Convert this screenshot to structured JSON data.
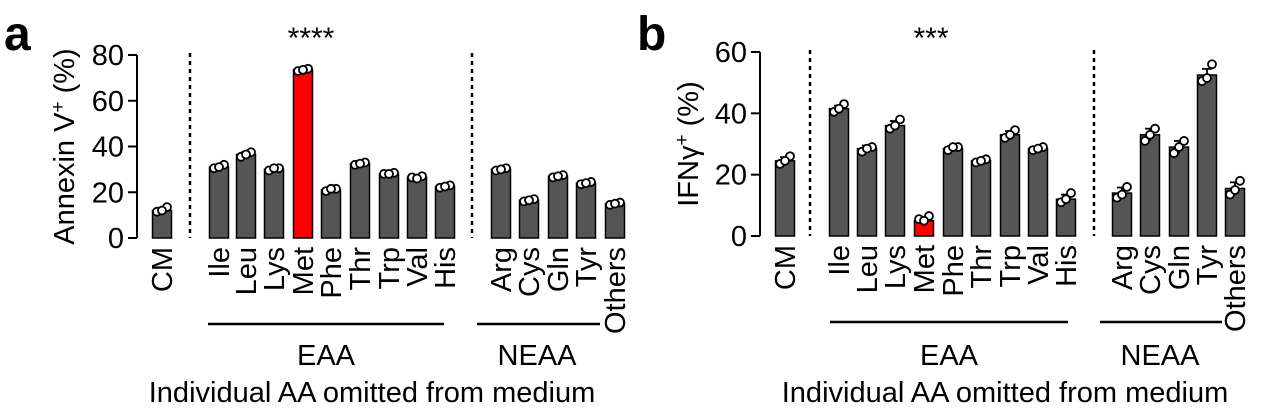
{
  "chart_data": [
    {
      "type": "bar",
      "panel_label": "a",
      "ylabel": "Annexin V",
      "ylabel_sup": "+",
      "ylabel_unit": " (%)",
      "xlabel": "Individual AA omitted from medium",
      "ylim": [
        0,
        80
      ],
      "yticks": [
        "0",
        "20",
        "40",
        "60",
        "80"
      ],
      "categories": [
        "CM",
        "Ile",
        "Leu",
        "Lys",
        "Met",
        "Phe",
        "Thr",
        "Trp",
        "Val",
        "His",
        "Arg",
        "Cys",
        "Gln",
        "Tyr",
        "Others"
      ],
      "values": [
        12,
        31,
        36.5,
        30,
        73.5,
        21,
        32.5,
        28,
        26.5,
        22.5,
        30,
        16.5,
        27,
        24,
        15
      ],
      "errors": [
        1,
        1,
        1,
        0.8,
        0.8,
        0.8,
        0.8,
        0.8,
        0.8,
        0.6,
        0.6,
        0.6,
        0.8,
        0.6,
        0.6
      ],
      "points": [
        [
          11.5,
          13.5,
          12
        ],
        [
          30.5,
          32,
          31
        ],
        [
          35.5,
          37.5,
          36.5
        ],
        [
          29.5,
          30.5,
          30.5
        ],
        [
          73,
          74,
          73.5
        ],
        [
          20.5,
          21.5,
          21.5
        ],
        [
          32,
          33,
          32.5
        ],
        [
          28,
          28.5,
          28
        ],
        [
          26.5,
          27,
          26
        ],
        [
          22,
          23,
          22.5
        ],
        [
          29.5,
          30.5,
          30
        ],
        [
          16,
          17,
          16.5
        ],
        [
          26.5,
          27.5,
          27
        ],
        [
          23.5,
          24.5,
          24
        ],
        [
          14.5,
          15.5,
          15
        ]
      ],
      "highlight_category": "Met",
      "colors": {
        "bar": "#555555",
        "highlight": "#ff0000"
      },
      "significance": "****",
      "groups": [
        {
          "label": "EAA",
          "from": "Ile",
          "to": "His"
        },
        {
          "label": "NEAA",
          "from": "Arg",
          "to": "Tyr"
        }
      ]
    },
    {
      "type": "bar",
      "panel_label": "b",
      "ylabel": "IFNγ",
      "ylabel_sup": "+",
      "ylabel_unit": " (%)",
      "xlabel": "Individual AA omitted from medium",
      "ylim": [
        0,
        60
      ],
      "yticks": [
        "0",
        "20",
        "40",
        "60"
      ],
      "categories": [
        "CM",
        "Ile",
        "Leu",
        "Lys",
        "Met",
        "Phe",
        "Thr",
        "Trp",
        "Val",
        "His",
        "Arg",
        "Cys",
        "Gln",
        "Tyr",
        "Others"
      ],
      "values": [
        24.5,
        41.5,
        28.5,
        36,
        5,
        28.5,
        24.5,
        33,
        28.5,
        12,
        14,
        33,
        29,
        52.5,
        15.5
      ],
      "errors": [
        1.2,
        1,
        1,
        1.5,
        0.8,
        0.8,
        0.5,
        1.2,
        0.5,
        1.5,
        1.8,
        2,
        2,
        2,
        2
      ],
      "points": [
        [
          23.5,
          26,
          24.5
        ],
        [
          40.5,
          43,
          41.5
        ],
        [
          27.5,
          29,
          28.5
        ],
        [
          35,
          38,
          36
        ],
        [
          5.5,
          6.5,
          5
        ],
        [
          28,
          29,
          29
        ],
        [
          24,
          25,
          24.5
        ],
        [
          32,
          34.5,
          33
        ],
        [
          28,
          29,
          28.5
        ],
        [
          11,
          14,
          12
        ],
        [
          12.5,
          16,
          13.5
        ],
        [
          31,
          35,
          33
        ],
        [
          27,
          31,
          29
        ],
        [
          50.5,
          56,
          51.5
        ],
        [
          13.5,
          18,
          15
        ]
      ],
      "highlight_category": "Met",
      "colors": {
        "bar": "#555555",
        "highlight": "#ff0000"
      },
      "significance": "***",
      "groups": [
        {
          "label": "EAA",
          "from": "Ile",
          "to": "His"
        },
        {
          "label": "NEAA",
          "from": "Arg",
          "to": "Tyr"
        }
      ]
    }
  ]
}
